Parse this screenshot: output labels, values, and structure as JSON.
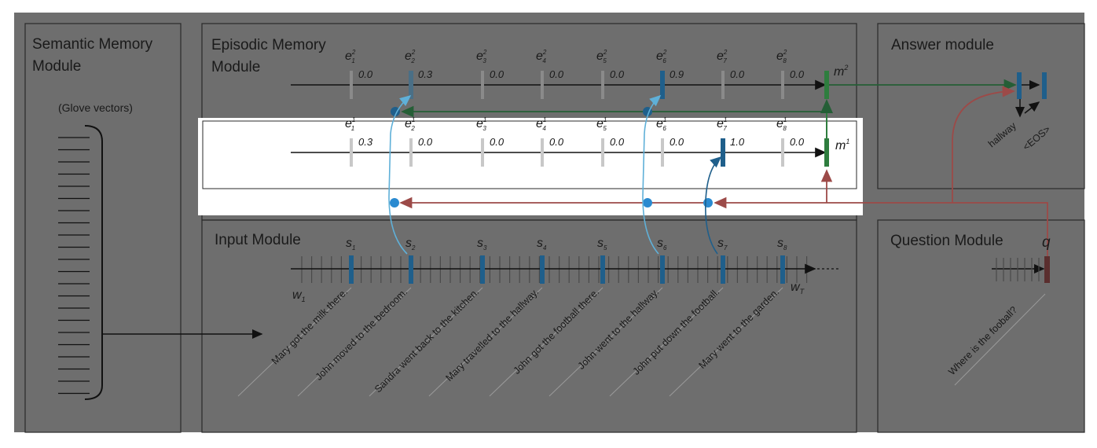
{
  "modules": {
    "semantic_title": [
      "Semantic Memory",
      "Module"
    ],
    "semantic_sub": "(Glove vectors)",
    "episodic_title": [
      "Episodic Memory",
      "Module"
    ],
    "answer_title": "Answer module",
    "input_title": "Input Module",
    "question_title": "Question Module"
  },
  "episodic": {
    "pass2": {
      "memory_label": "m",
      "memory_sup": "2",
      "gates": [
        "0.0",
        "0.3",
        "0.0",
        "0.0",
        "0.0",
        "0.9",
        "0.0",
        "0.0"
      ],
      "sup": "2"
    },
    "pass1": {
      "memory_label": "m",
      "memory_sup": "1",
      "gates": [
        "0.3",
        "0.0",
        "0.0",
        "0.0",
        "0.0",
        "0.0",
        "1.0",
        "0.0"
      ],
      "sup": "1"
    },
    "gate_letter": "e",
    "subscripts": [
      "1",
      "2",
      "3",
      "4",
      "5",
      "6",
      "7",
      "8"
    ]
  },
  "input": {
    "s_letter": "s",
    "w_letter": "w",
    "w_first_sub": "1",
    "w_last_sub": "T",
    "sentences": [
      "Mary got the milk there.",
      "John moved to the bedroom.",
      "Sandra went back to the kitchen.",
      "Mary travelled to the hallway.",
      "John got the football there.",
      "John went to the hallway.",
      "John put down the football.",
      "Mary went to the garden."
    ]
  },
  "question": {
    "q_label": "q",
    "text": "Where is the fooball?"
  },
  "answer": {
    "words": [
      "hallway",
      "<EOS>"
    ]
  },
  "colors": {
    "panel_dark": "#6e6e6e",
    "panel_light": "#ffffff",
    "blue": "#1f5f8b",
    "light_blue": "#5fb0d8",
    "green": "#2e7d3e",
    "dark_green": "#255e36",
    "red": "#9c4a48",
    "gray_bar": "#8a8a8a",
    "light_gray_bar": "#c8c8c8"
  }
}
